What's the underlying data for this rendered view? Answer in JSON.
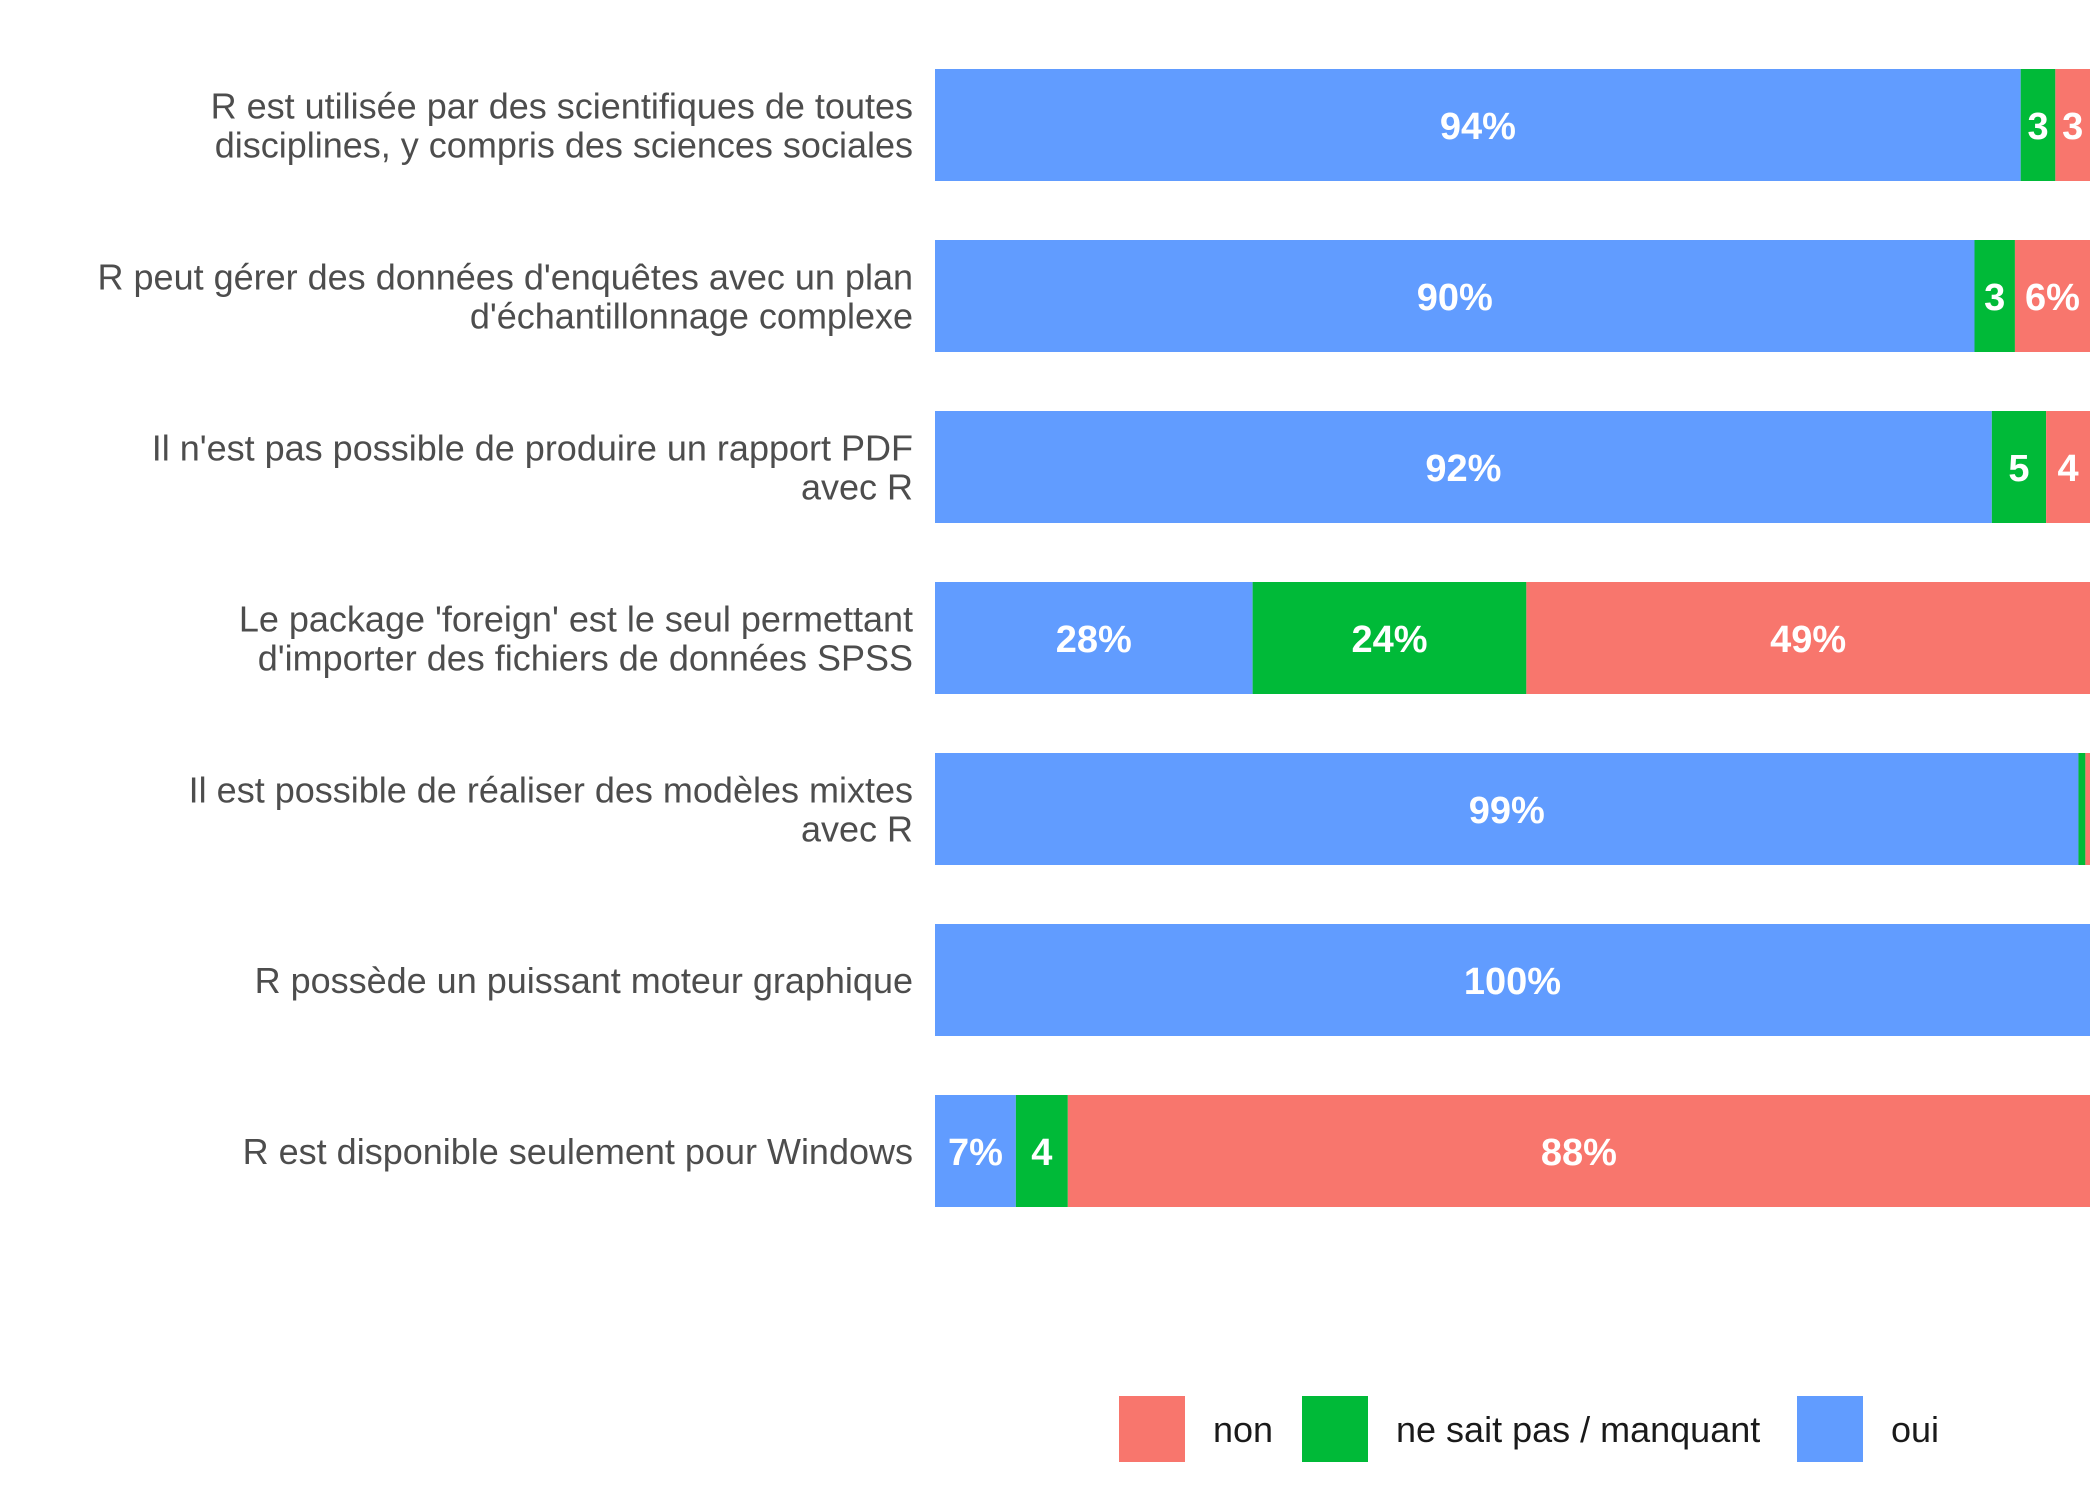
{
  "chart_data": {
    "type": "bar",
    "orientation": "horizontal",
    "stacked": true,
    "normalized": true,
    "xlim": [
      0,
      1
    ],
    "grid": false,
    "legend_position": "bottom",
    "categories": [
      [
        "R est utilisée par des scientifiques de toutes",
        "disciplines, y compris des sciences sociales"
      ],
      [
        "R peut gérer des données d'enquêtes avec un plan",
        "d'échantillonnage complexe"
      ],
      [
        "Il n'est pas possible de produire un rapport PDF",
        "avec R"
      ],
      [
        "Le package 'foreign' est le seul permettant",
        "d'importer des fichiers de données SPSS"
      ],
      [
        "Il est possible de réaliser des modèles mixtes",
        "avec R"
      ],
      [
        "R possède un puissant moteur graphique"
      ],
      [
        "R est disponible seulement pour Windows"
      ]
    ],
    "series": [
      {
        "name": "oui",
        "color": "#619CFF",
        "values": [
          0.94,
          0.9,
          0.915,
          0.275,
          0.99,
          1.0,
          0.07
        ],
        "labels": [
          "94%",
          "90%",
          "92%",
          "28%",
          "99%",
          "100%",
          "7%"
        ]
      },
      {
        "name": "ne sait pas / manquant",
        "color": "#00BA38",
        "values": [
          0.03,
          0.035,
          0.047,
          0.237,
          0.006,
          0.0,
          0.045
        ],
        "labels": [
          "3",
          "3",
          "5",
          "24%",
          "",
          "",
          "4"
        ]
      },
      {
        "name": "non",
        "color": "#F8766D",
        "values": [
          0.03,
          0.065,
          0.038,
          0.488,
          0.004,
          0.0,
          0.885
        ],
        "labels": [
          "3",
          "6%",
          "4",
          "49%",
          "",
          "",
          "88%"
        ]
      }
    ],
    "legend": [
      {
        "name": "non",
        "color": "#F8766D"
      },
      {
        "name": "ne sait pas / manquant",
        "color": "#00BA38"
      },
      {
        "name": "oui",
        "color": "#619CFF"
      }
    ]
  }
}
